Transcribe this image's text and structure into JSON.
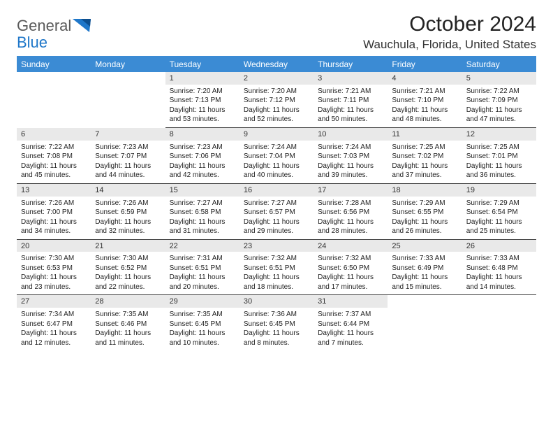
{
  "logo": {
    "general": "General",
    "blue": "Blue"
  },
  "title": "October 2024",
  "location": "Wauchula, Florida, United States",
  "colors": {
    "header_bg": "#3b8bd4",
    "header_text": "#ffffff",
    "daynum_bg": "#e9e9e9",
    "border": "#444444",
    "logo_gray": "#5a5a5a",
    "logo_blue": "#1f77c9",
    "text": "#222222"
  },
  "day_names": [
    "Sunday",
    "Monday",
    "Tuesday",
    "Wednesday",
    "Thursday",
    "Friday",
    "Saturday"
  ],
  "weeks": [
    [
      null,
      null,
      {
        "d": "1",
        "sr": "Sunrise: 7:20 AM",
        "ss": "Sunset: 7:13 PM",
        "dl1": "Daylight: 11 hours",
        "dl2": "and 53 minutes."
      },
      {
        "d": "2",
        "sr": "Sunrise: 7:20 AM",
        "ss": "Sunset: 7:12 PM",
        "dl1": "Daylight: 11 hours",
        "dl2": "and 52 minutes."
      },
      {
        "d": "3",
        "sr": "Sunrise: 7:21 AM",
        "ss": "Sunset: 7:11 PM",
        "dl1": "Daylight: 11 hours",
        "dl2": "and 50 minutes."
      },
      {
        "d": "4",
        "sr": "Sunrise: 7:21 AM",
        "ss": "Sunset: 7:10 PM",
        "dl1": "Daylight: 11 hours",
        "dl2": "and 48 minutes."
      },
      {
        "d": "5",
        "sr": "Sunrise: 7:22 AM",
        "ss": "Sunset: 7:09 PM",
        "dl1": "Daylight: 11 hours",
        "dl2": "and 47 minutes."
      }
    ],
    [
      {
        "d": "6",
        "sr": "Sunrise: 7:22 AM",
        "ss": "Sunset: 7:08 PM",
        "dl1": "Daylight: 11 hours",
        "dl2": "and 45 minutes."
      },
      {
        "d": "7",
        "sr": "Sunrise: 7:23 AM",
        "ss": "Sunset: 7:07 PM",
        "dl1": "Daylight: 11 hours",
        "dl2": "and 44 minutes."
      },
      {
        "d": "8",
        "sr": "Sunrise: 7:23 AM",
        "ss": "Sunset: 7:06 PM",
        "dl1": "Daylight: 11 hours",
        "dl2": "and 42 minutes."
      },
      {
        "d": "9",
        "sr": "Sunrise: 7:24 AM",
        "ss": "Sunset: 7:04 PM",
        "dl1": "Daylight: 11 hours",
        "dl2": "and 40 minutes."
      },
      {
        "d": "10",
        "sr": "Sunrise: 7:24 AM",
        "ss": "Sunset: 7:03 PM",
        "dl1": "Daylight: 11 hours",
        "dl2": "and 39 minutes."
      },
      {
        "d": "11",
        "sr": "Sunrise: 7:25 AM",
        "ss": "Sunset: 7:02 PM",
        "dl1": "Daylight: 11 hours",
        "dl2": "and 37 minutes."
      },
      {
        "d": "12",
        "sr": "Sunrise: 7:25 AM",
        "ss": "Sunset: 7:01 PM",
        "dl1": "Daylight: 11 hours",
        "dl2": "and 36 minutes."
      }
    ],
    [
      {
        "d": "13",
        "sr": "Sunrise: 7:26 AM",
        "ss": "Sunset: 7:00 PM",
        "dl1": "Daylight: 11 hours",
        "dl2": "and 34 minutes."
      },
      {
        "d": "14",
        "sr": "Sunrise: 7:26 AM",
        "ss": "Sunset: 6:59 PM",
        "dl1": "Daylight: 11 hours",
        "dl2": "and 32 minutes."
      },
      {
        "d": "15",
        "sr": "Sunrise: 7:27 AM",
        "ss": "Sunset: 6:58 PM",
        "dl1": "Daylight: 11 hours",
        "dl2": "and 31 minutes."
      },
      {
        "d": "16",
        "sr": "Sunrise: 7:27 AM",
        "ss": "Sunset: 6:57 PM",
        "dl1": "Daylight: 11 hours",
        "dl2": "and 29 minutes."
      },
      {
        "d": "17",
        "sr": "Sunrise: 7:28 AM",
        "ss": "Sunset: 6:56 PM",
        "dl1": "Daylight: 11 hours",
        "dl2": "and 28 minutes."
      },
      {
        "d": "18",
        "sr": "Sunrise: 7:29 AM",
        "ss": "Sunset: 6:55 PM",
        "dl1": "Daylight: 11 hours",
        "dl2": "and 26 minutes."
      },
      {
        "d": "19",
        "sr": "Sunrise: 7:29 AM",
        "ss": "Sunset: 6:54 PM",
        "dl1": "Daylight: 11 hours",
        "dl2": "and 25 minutes."
      }
    ],
    [
      {
        "d": "20",
        "sr": "Sunrise: 7:30 AM",
        "ss": "Sunset: 6:53 PM",
        "dl1": "Daylight: 11 hours",
        "dl2": "and 23 minutes."
      },
      {
        "d": "21",
        "sr": "Sunrise: 7:30 AM",
        "ss": "Sunset: 6:52 PM",
        "dl1": "Daylight: 11 hours",
        "dl2": "and 22 minutes."
      },
      {
        "d": "22",
        "sr": "Sunrise: 7:31 AM",
        "ss": "Sunset: 6:51 PM",
        "dl1": "Daylight: 11 hours",
        "dl2": "and 20 minutes."
      },
      {
        "d": "23",
        "sr": "Sunrise: 7:32 AM",
        "ss": "Sunset: 6:51 PM",
        "dl1": "Daylight: 11 hours",
        "dl2": "and 18 minutes."
      },
      {
        "d": "24",
        "sr": "Sunrise: 7:32 AM",
        "ss": "Sunset: 6:50 PM",
        "dl1": "Daylight: 11 hours",
        "dl2": "and 17 minutes."
      },
      {
        "d": "25",
        "sr": "Sunrise: 7:33 AM",
        "ss": "Sunset: 6:49 PM",
        "dl1": "Daylight: 11 hours",
        "dl2": "and 15 minutes."
      },
      {
        "d": "26",
        "sr": "Sunrise: 7:33 AM",
        "ss": "Sunset: 6:48 PM",
        "dl1": "Daylight: 11 hours",
        "dl2": "and 14 minutes."
      }
    ],
    [
      {
        "d": "27",
        "sr": "Sunrise: 7:34 AM",
        "ss": "Sunset: 6:47 PM",
        "dl1": "Daylight: 11 hours",
        "dl2": "and 12 minutes."
      },
      {
        "d": "28",
        "sr": "Sunrise: 7:35 AM",
        "ss": "Sunset: 6:46 PM",
        "dl1": "Daylight: 11 hours",
        "dl2": "and 11 minutes."
      },
      {
        "d": "29",
        "sr": "Sunrise: 7:35 AM",
        "ss": "Sunset: 6:45 PM",
        "dl1": "Daylight: 11 hours",
        "dl2": "and 10 minutes."
      },
      {
        "d": "30",
        "sr": "Sunrise: 7:36 AM",
        "ss": "Sunset: 6:45 PM",
        "dl1": "Daylight: 11 hours",
        "dl2": "and 8 minutes."
      },
      {
        "d": "31",
        "sr": "Sunrise: 7:37 AM",
        "ss": "Sunset: 6:44 PM",
        "dl1": "Daylight: 11 hours",
        "dl2": "and 7 minutes."
      },
      null,
      null
    ]
  ]
}
